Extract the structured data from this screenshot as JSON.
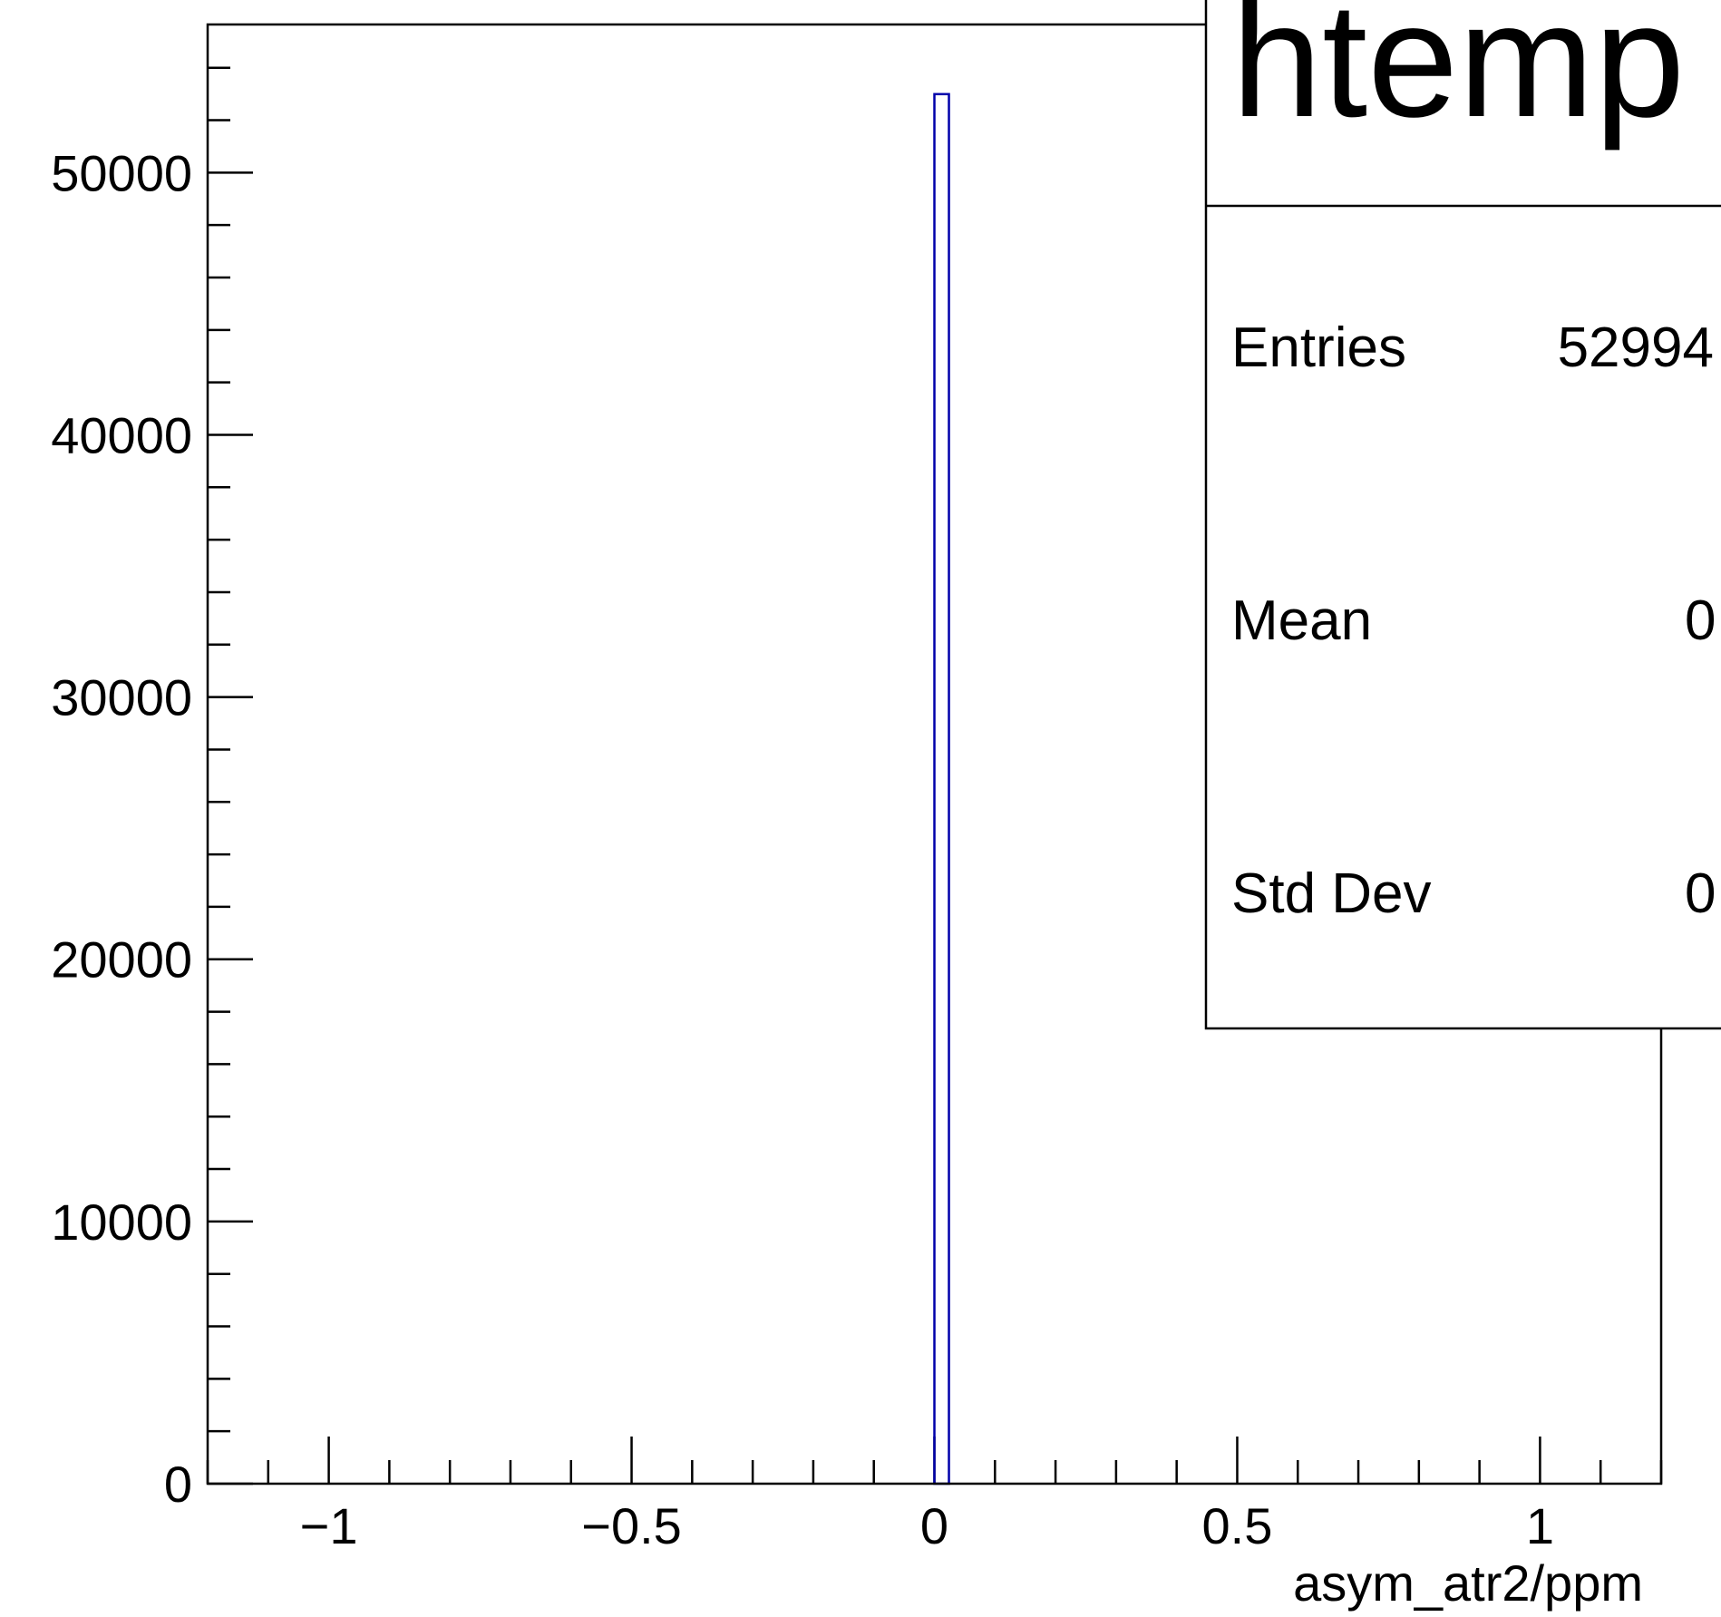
{
  "chart_data": {
    "type": "bar",
    "title": "htemp",
    "xlabel": "asym_atr2/ppm",
    "ylabel": "",
    "xlim": [
      -1.2,
      1.2
    ],
    "ylim": [
      0,
      55650
    ],
    "x_ticks": [
      {
        "value": -1,
        "label": "−1"
      },
      {
        "value": -0.5,
        "label": "−0.5"
      },
      {
        "value": 0,
        "label": "0"
      },
      {
        "value": 0.5,
        "label": "0.5"
      },
      {
        "value": 1,
        "label": "1"
      }
    ],
    "y_ticks": [
      0,
      10000,
      20000,
      30000,
      40000,
      50000
    ],
    "bins": [
      {
        "x_low": 0.0,
        "x_high": 0.024,
        "count": 52994
      }
    ],
    "bar_color": "#0000aa",
    "stats": {
      "entries_label": "Entries",
      "entries_value": "52994",
      "mean_label": "Mean",
      "mean_value": "0",
      "stddev_label": "Std Dev",
      "stddev_value": "0"
    }
  }
}
